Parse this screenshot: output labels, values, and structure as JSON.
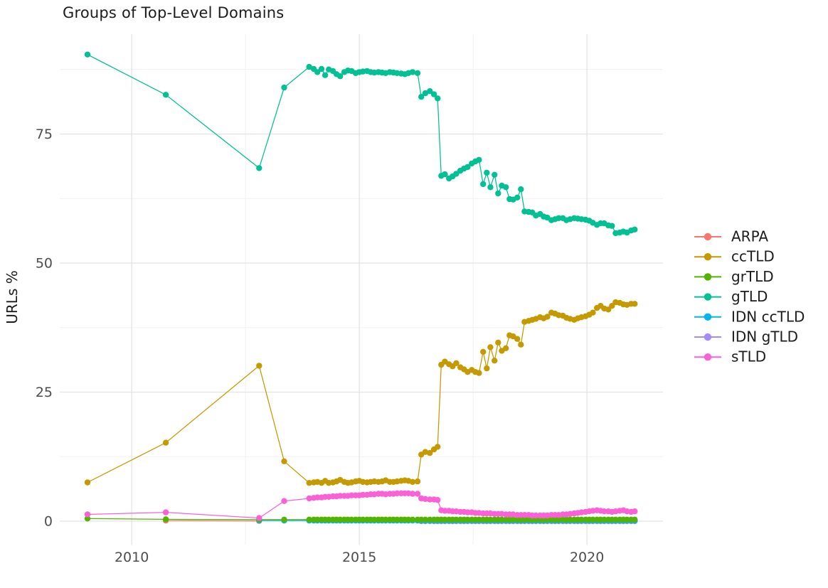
{
  "title": "Groups of Top-Level Domains",
  "colors": {
    "background": "#ffffff",
    "grid_major": "#e3e3e3",
    "grid_minor": "#f1f1f1",
    "tick_text": "#4d4d4d",
    "text": "#1c1c1c"
  },
  "chart_data": {
    "type": "line",
    "title": "Groups of Top-Level Domains",
    "xlabel": "",
    "ylabel": "URLs %",
    "x_ticks": [
      2010,
      2015,
      2020
    ],
    "x_minor": [
      2012.5,
      2017.5
    ],
    "y_ticks": [
      0,
      25,
      50,
      75
    ],
    "y_minor": [
      12.5,
      37.5,
      62.5,
      87.5
    ],
    "x_range": [
      2008.42,
      2021.67
    ],
    "y_range": [
      -4.55,
      94.35
    ],
    "grid": true,
    "legend_position": "right",
    "grids": {
      "a2": [
        2010.75,
        2012.8
      ],
      "i3": [
        2012.8,
        2013.35,
        2013.9
      ],
      "e5": [
        2009.03,
        2010.75,
        2012.8,
        2013.35,
        2013.9
      ],
      "s5": [
        2016.36,
        2016.45,
        2016.55,
        2016.64,
        2016.72
      ],
      "m1": [
        2014.0,
        2014.08,
        2014.17,
        2014.25,
        2014.33,
        2014.42,
        2014.5,
        2014.58,
        2014.67,
        2014.75,
        2014.83,
        2014.92,
        2015.0,
        2015.08,
        2015.17,
        2015.25,
        2015.33,
        2015.42,
        2015.5,
        2015.58,
        2015.67,
        2015.75,
        2015.83,
        2015.92,
        2016.0,
        2016.08,
        2016.17,
        2016.28
      ],
      "m2": [
        2016.8,
        2016.88,
        2016.97,
        2017.05,
        2017.13,
        2017.22,
        2017.3,
        2017.38,
        2017.47,
        2017.55,
        2017.63,
        2017.72,
        2017.8,
        2017.88,
        2017.97,
        2018.05,
        2018.13,
        2018.22,
        2018.3,
        2018.38,
        2018.47,
        2018.55,
        2018.63,
        2018.72,
        2018.8,
        2018.88,
        2018.97,
        2019.05,
        2019.13,
        2019.22,
        2019.3,
        2019.38,
        2019.47,
        2019.55,
        2019.63,
        2019.72,
        2019.8,
        2019.88,
        2019.97,
        2020.05,
        2020.13,
        2020.22,
        2020.3,
        2020.38,
        2020.47,
        2020.55,
        2020.63,
        2020.72,
        2020.8,
        2020.88,
        2020.97,
        2021.05
      ]
    },
    "series": [
      {
        "name": "ARPA",
        "color": "#F8766D",
        "z": 1,
        "parts": [
          [
            "a2",
            [
              0.1,
              0.05
            ]
          ]
        ]
      },
      {
        "name": "ccTLD",
        "color": "#C49A00",
        "z": 2,
        "parts": [
          [
            "e5",
            [
              7.5,
              15.2,
              30.1,
              11.6,
              7.4
            ]
          ],
          [
            "m1",
            [
              7.5,
              7.6,
              7.4,
              7.8,
              7.4,
              7.5,
              7.7,
              8.0,
              7.6,
              7.4,
              7.5,
              7.7,
              7.8,
              7.6,
              7.5,
              7.6,
              7.7,
              7.6,
              7.7,
              7.9,
              7.6,
              7.6,
              7.7,
              7.8,
              7.9,
              7.8,
              7.6,
              7.7
            ]
          ],
          [
            "s5",
            [
              12.9,
              13.4,
              13.2,
              13.9,
              14.4
            ]
          ],
          [
            "m2",
            [
              30.3,
              30.9,
              30.4,
              30.0,
              30.6,
              29.8,
              29.4,
              28.9,
              29.3,
              28.9,
              28.7,
              32.8,
              29.6,
              33.7,
              31.1,
              34.6,
              33.0,
              33.5,
              36.0,
              35.8,
              35.3,
              34.2,
              38.6,
              38.8,
              39.0,
              39.2,
              39.5,
              39.3,
              39.6,
              40.4,
              40.2,
              39.9,
              39.8,
              39.4,
              39.2,
              39.0,
              39.3,
              39.5,
              39.7,
              40.0,
              40.4,
              41.3,
              41.7,
              41.2,
              41.0,
              41.7,
              42.4,
              42.3,
              42.0,
              41.9,
              42.1,
              42.1
            ]
          ]
        ]
      },
      {
        "name": "grTLD",
        "color": "#53B400",
        "z": 5,
        "parts": [
          [
            "e5",
            [
              0.5,
              0.35,
              0.3,
              0.3,
              0.3
            ]
          ],
          [
            "m1",
            0.3
          ],
          [
            "s5",
            0.3
          ],
          [
            "m2",
            0.3
          ]
        ]
      },
      {
        "name": "gTLD",
        "color": "#00C094",
        "z": 6,
        "parts": [
          [
            "e5",
            [
              90.4,
              82.6,
              68.4,
              84.0,
              88.0
            ]
          ],
          [
            "m1",
            [
              87.6,
              87.0,
              87.6,
              86.4,
              87.5,
              87.2,
              86.6,
              86.2,
              87.0,
              87.3,
              87.2,
              86.8,
              87.0,
              87.1,
              87.2,
              87.0,
              86.9,
              87.0,
              86.9,
              86.8,
              87.0,
              86.9,
              86.8,
              86.7,
              86.6,
              86.8,
              87.0,
              86.8
            ]
          ],
          [
            "s5",
            [
              82.2,
              82.9,
              83.3,
              82.7,
              81.9
            ]
          ],
          [
            "m2",
            [
              66.9,
              67.2,
              66.4,
              66.8,
              67.3,
              67.9,
              68.3,
              68.6,
              69.3,
              69.7,
              70.0,
              65.3,
              67.5,
              64.7,
              67.1,
              63.5,
              65.0,
              64.7,
              62.4,
              62.3,
              62.7,
              64.3,
              60.0,
              59.9,
              59.8,
              59.2,
              59.5,
              59.0,
              58.8,
              58.3,
              58.5,
              58.7,
              58.7,
              58.3,
              58.5,
              58.7,
              58.6,
              58.5,
              58.4,
              58.2,
              57.8,
              57.4,
              57.7,
              57.7,
              57.3,
              57.2,
              55.8,
              55.9,
              56.1,
              55.9,
              56.3,
              56.5
            ]
          ]
        ]
      },
      {
        "name": "IDN ccTLD",
        "color": "#00B6EB",
        "z": 4,
        "parts": [
          [
            "i3",
            0.1
          ],
          [
            "m1",
            0.1
          ],
          [
            "s5",
            0.1
          ],
          [
            "m2",
            0.1
          ]
        ]
      },
      {
        "name": "IDN gTLD",
        "color": "#A58AFF",
        "z": 3,
        "parts": [
          [
            "s5",
            0.0
          ],
          [
            "m2",
            0.0
          ]
        ]
      },
      {
        "name": "sTLD",
        "color": "#FB61D7",
        "z": 7,
        "parts": [
          [
            "e5",
            [
              1.3,
              1.7,
              0.6,
              3.9,
              4.4
            ]
          ],
          [
            "m1",
            [
              4.5,
              4.6,
              4.6,
              4.7,
              4.7,
              4.8,
              4.8,
              4.9,
              4.9,
              4.9,
              5.0,
              5.0,
              5.0,
              5.1,
              5.1,
              5.2,
              5.2,
              5.3,
              5.3,
              5.2,
              5.3,
              5.3,
              5.4,
              5.4,
              5.4,
              5.4,
              5.3,
              5.3
            ]
          ],
          [
            "s5",
            [
              4.4,
              4.3,
              4.2,
              4.2,
              4.1
            ]
          ],
          [
            "m2",
            [
              2.1,
              2.0,
              2.0,
              1.9,
              1.9,
              1.8,
              1.8,
              1.7,
              1.7,
              1.6,
              1.6,
              1.5,
              1.5,
              1.5,
              1.4,
              1.4,
              1.4,
              1.3,
              1.3,
              1.3,
              1.2,
              1.2,
              1.2,
              1.2,
              1.1,
              1.1,
              1.1,
              1.1,
              1.1,
              1.2,
              1.2,
              1.2,
              1.3,
              1.3,
              1.4,
              1.5,
              1.6,
              1.7,
              1.8,
              1.9,
              2.0,
              2.1,
              2.0,
              1.9,
              1.9,
              1.8,
              1.9,
              2.0,
              2.1,
              1.9,
              1.8,
              1.9
            ]
          ]
        ]
      }
    ]
  },
  "legend": {
    "items": [
      "ARPA",
      "ccTLD",
      "grTLD",
      "gTLD",
      "IDN ccTLD",
      "IDN gTLD",
      "sTLD"
    ]
  }
}
